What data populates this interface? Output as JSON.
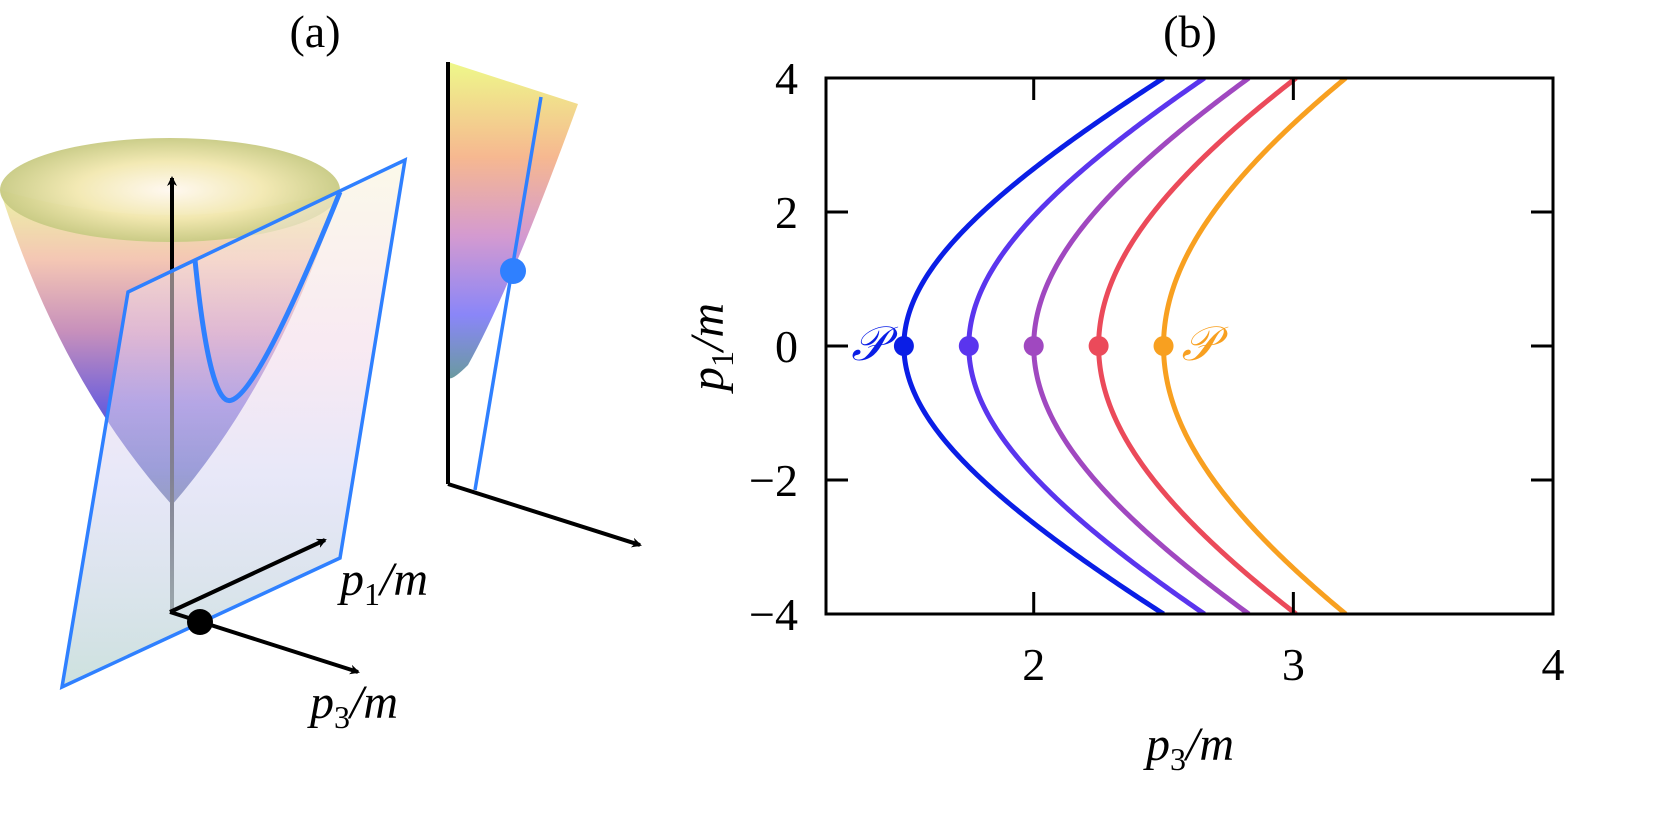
{
  "panels": {
    "a": {
      "label": "(a)",
      "axis_x_var": "p",
      "axis_x_sub": "1",
      "axis_x_unit": "/m",
      "axis_y_var": "p",
      "axis_y_sub": "3",
      "axis_y_unit": "/m"
    },
    "b": {
      "label": "(b)"
    }
  },
  "colors": {
    "plane": "#2f80ff",
    "inset_curve": "#2f80ff",
    "axes": "#000000"
  },
  "chart_data": {
    "type": "line",
    "title": "(b)",
    "x_var": "p",
    "x_sub": "3",
    "x_unit": "/m",
    "y_var": "p",
    "y_sub": "1",
    "y_unit": "/m",
    "xlim": [
      1.2,
      4
    ],
    "ylim": [
      -4,
      4
    ],
    "x_ticks": [
      2,
      3,
      4
    ],
    "x_tick_labels": [
      "2",
      "3",
      "4"
    ],
    "y_ticks": [
      -4,
      -2,
      0,
      2,
      4
    ],
    "y_tick_labels": [
      "−4",
      "−2",
      "0",
      "2",
      "4"
    ],
    "series": [
      {
        "name": "vertex 1.5",
        "vertex_p3": 1.5,
        "color": "#0a1ee6"
      },
      {
        "name": "vertex 1.75",
        "vertex_p3": 1.75,
        "color": "#5a35ee"
      },
      {
        "name": "vertex 2.0",
        "vertex_p3": 2.0,
        "color": "#a048c0"
      },
      {
        "name": "vertex 2.25",
        "vertex_p3": 2.25,
        "color": "#eb4a5a"
      },
      {
        "name": "vertex 2.5",
        "vertex_p3": 2.5,
        "color": "#f8a020"
      }
    ],
    "curve_relation": "p3/m = sqrt(v^2 + (p1/m)^2 / 4)",
    "annotations": [
      {
        "text": "𝒫",
        "at_series": 0,
        "side": "left"
      },
      {
        "text": "𝒫",
        "at_series": 4,
        "side": "right"
      }
    ]
  }
}
